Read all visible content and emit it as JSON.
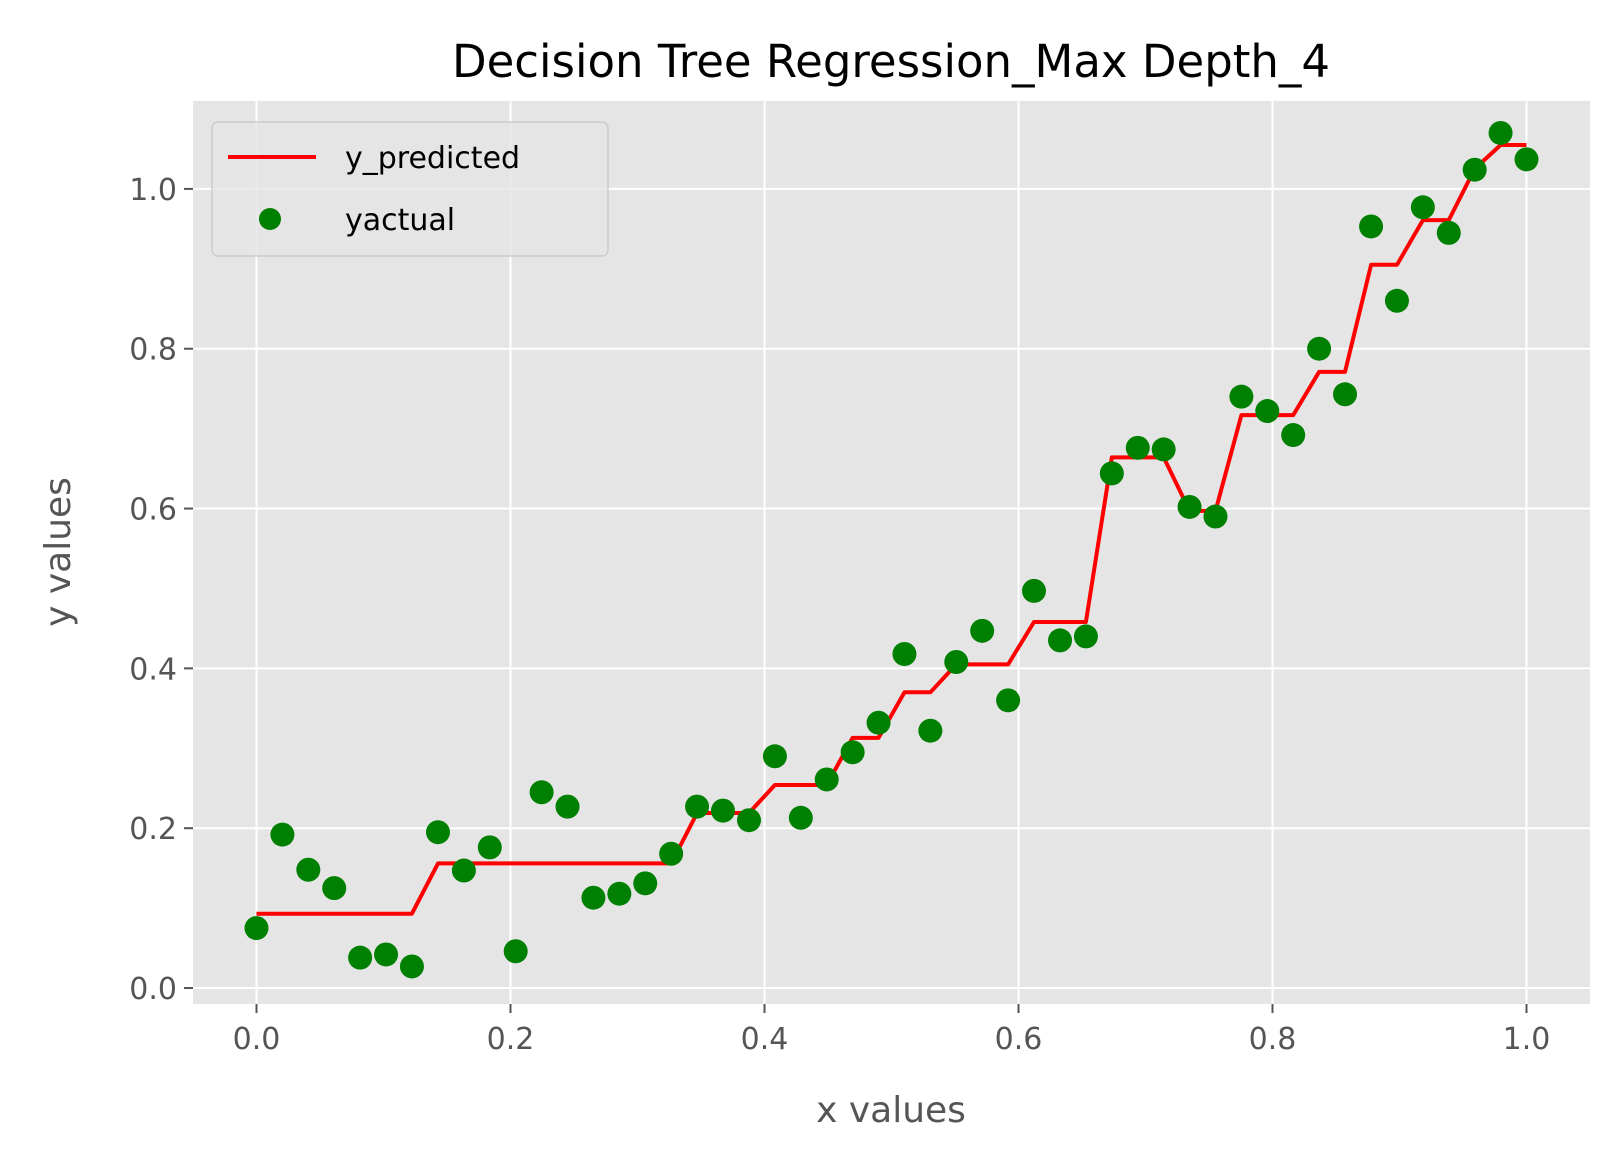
{
  "chart_data": {
    "type": "line+scatter",
    "title": "Decision Tree Regression_Max Depth_4",
    "xlabel": "x values",
    "ylabel": "y values",
    "xlim": [
      -0.05,
      1.05
    ],
    "ylim": [
      -0.02,
      1.11
    ],
    "x_ticks": [
      "0.0",
      "0.2",
      "0.4",
      "0.6",
      "0.8",
      "1.0"
    ],
    "y_ticks": [
      "0.0",
      "0.2",
      "0.4",
      "0.6",
      "0.8",
      "1.0"
    ],
    "grid": true,
    "legend_position": "top-left",
    "colors": {
      "predicted": "#ff0000",
      "actual": "#008000",
      "plot_bg": "#e5e5e5",
      "grid": "#ffffff"
    },
    "series": [
      {
        "name": "y_predicted",
        "kind": "line",
        "x": [
          0.0,
          0.1224,
          0.1429,
          0.3265,
          0.3469,
          0.3878,
          0.4082,
          0.449,
          0.4694,
          0.4898,
          0.5102,
          0.5306,
          0.551,
          0.5918,
          0.6122,
          0.6531,
          0.6735,
          0.7143,
          0.7347,
          0.7551,
          0.7755,
          0.8163,
          0.8367,
          0.8571,
          0.8776,
          0.898,
          0.9184,
          0.9388,
          0.9592,
          0.9796,
          1.0
        ],
        "y": [
          0.093,
          0.093,
          0.156,
          0.156,
          0.219,
          0.219,
          0.254,
          0.254,
          0.313,
          0.313,
          0.37,
          0.37,
          0.405,
          0.405,
          0.458,
          0.458,
          0.664,
          0.664,
          0.597,
          0.597,
          0.717,
          0.717,
          0.771,
          0.771,
          0.905,
          0.905,
          0.961,
          0.961,
          1.025,
          1.055,
          1.055
        ]
      },
      {
        "name": "yactual",
        "kind": "scatter",
        "x": [
          0.0,
          0.0204,
          0.0408,
          0.0612,
          0.0816,
          0.102,
          0.1224,
          0.1429,
          0.1633,
          0.1837,
          0.2041,
          0.2245,
          0.2449,
          0.2653,
          0.2857,
          0.3061,
          0.3265,
          0.3469,
          0.3673,
          0.3878,
          0.4082,
          0.4286,
          0.449,
          0.4694,
          0.4898,
          0.5102,
          0.5306,
          0.551,
          0.5714,
          0.5918,
          0.6122,
          0.6327,
          0.6531,
          0.6735,
          0.6939,
          0.7143,
          0.7347,
          0.7551,
          0.7755,
          0.7959,
          0.8163,
          0.8367,
          0.8571,
          0.8776,
          0.898,
          0.9184,
          0.9388,
          0.9592,
          0.9796,
          1.0
        ],
        "y": [
          0.075,
          0.192,
          0.148,
          0.125,
          0.038,
          0.042,
          0.027,
          0.195,
          0.147,
          0.176,
          0.046,
          0.245,
          0.227,
          0.113,
          0.118,
          0.131,
          0.168,
          0.227,
          0.222,
          0.21,
          0.29,
          0.213,
          0.261,
          0.295,
          0.332,
          0.418,
          0.322,
          0.408,
          0.447,
          0.36,
          0.497,
          0.435,
          0.44,
          0.644,
          0.676,
          0.674,
          0.602,
          0.59,
          0.74,
          0.722,
          0.692,
          0.8,
          0.743,
          0.953,
          0.86,
          0.977,
          0.945,
          1.024,
          1.07,
          1.037
        ]
      }
    ]
  }
}
